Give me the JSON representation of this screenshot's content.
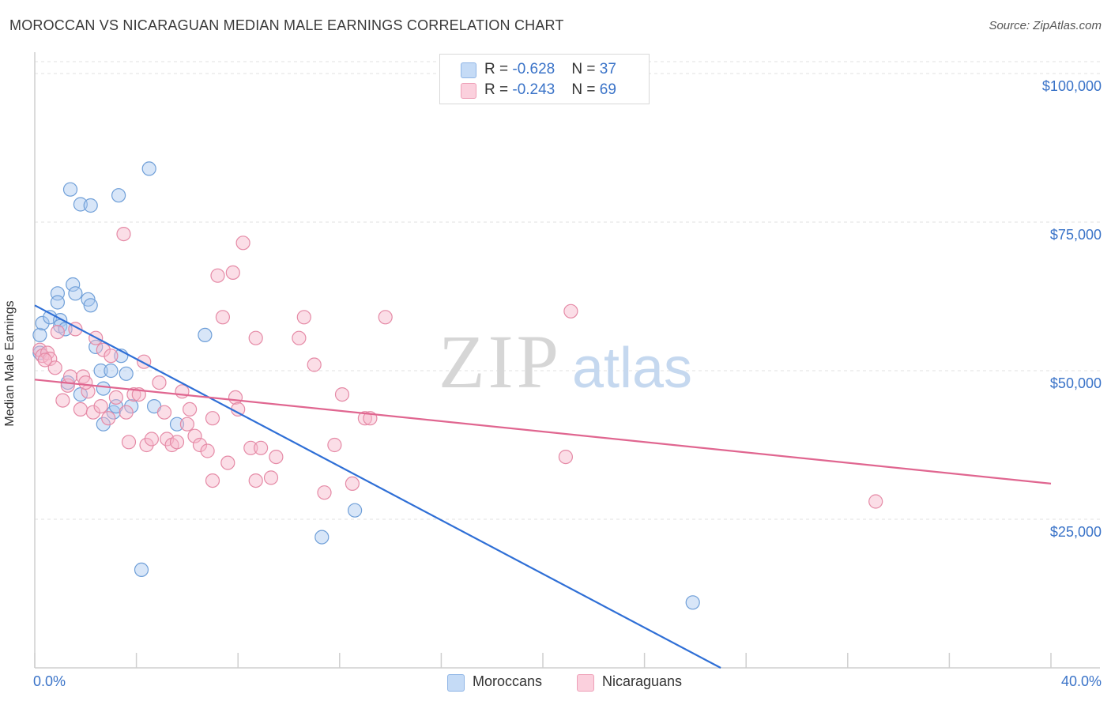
{
  "title": "MOROCCAN VS NICARAGUAN MEDIAN MALE EARNINGS CORRELATION CHART",
  "source": "Source: ZipAtlas.com",
  "watermark": {
    "zip": "ZIP",
    "atlas": "atlas"
  },
  "legend": {
    "rows": [
      {
        "r_label": "R = ",
        "r_value": "-0.628",
        "n_label": "N = ",
        "n_value": "37",
        "color": "#a9c8f0"
      },
      {
        "r_label": "R = ",
        "r_value": "-0.243",
        "n_label": "N = ",
        "n_value": "69",
        "color": "#f6b6c9"
      }
    ]
  },
  "bottom_legend": [
    {
      "label": "Moroccans",
      "color": "#a9c8f0"
    },
    {
      "label": "Nicaraguans",
      "color": "#f6b6c9"
    }
  ],
  "chart_data": {
    "type": "scatter",
    "title": "MOROCCAN VS NICARAGUAN MEDIAN MALE EARNINGS CORRELATION CHART",
    "xlabel": "",
    "ylabel": "Median Male Earnings",
    "xlim": [
      0,
      40
    ],
    "ylim": [
      0,
      100000
    ],
    "x_tick_labels": [
      "0.0%",
      "40.0%"
    ],
    "y_ticks": [
      25000,
      50000,
      75000,
      100000
    ],
    "y_tick_labels": [
      "$25,000",
      "$50,000",
      "$75,000",
      "$100,000"
    ],
    "grid": true,
    "legend_position": "top-center",
    "series": [
      {
        "name": "Moroccans",
        "color": "#a9c8f0",
        "stroke": "#6f9fd8",
        "line_color": "#2f6fd6",
        "trend": {
          "x": [
            0,
            27
          ],
          "y": [
            61000,
            0
          ]
        },
        "points": [
          [
            0.2,
            56000
          ],
          [
            0.3,
            58000
          ],
          [
            0.6,
            59000
          ],
          [
            0.9,
            63000
          ],
          [
            0.9,
            61500
          ],
          [
            1.0,
            58500
          ],
          [
            1.0,
            57500
          ],
          [
            1.2,
            57000
          ],
          [
            1.3,
            48000
          ],
          [
            1.5,
            64500
          ],
          [
            1.6,
            63000
          ],
          [
            1.8,
            46000
          ],
          [
            2.1,
            62000
          ],
          [
            2.2,
            61000
          ],
          [
            1.4,
            80500
          ],
          [
            1.8,
            78000
          ],
          [
            2.2,
            77800
          ],
          [
            2.4,
            54000
          ],
          [
            2.6,
            50000
          ],
          [
            2.7,
            41000
          ],
          [
            2.7,
            47000
          ],
          [
            3.0,
            50000
          ],
          [
            3.1,
            43000
          ],
          [
            3.2,
            44000
          ],
          [
            3.3,
            79500
          ],
          [
            3.4,
            52500
          ],
          [
            3.6,
            49500
          ],
          [
            3.8,
            44000
          ],
          [
            4.2,
            16500
          ],
          [
            4.5,
            84000
          ],
          [
            4.7,
            44000
          ],
          [
            5.6,
            41000
          ],
          [
            6.7,
            56000
          ],
          [
            11.3,
            22000
          ],
          [
            12.6,
            26500
          ],
          [
            25.9,
            11000
          ],
          [
            0.2,
            53000
          ]
        ]
      },
      {
        "name": "Nicaraguans",
        "color": "#f6b6c9",
        "stroke": "#e58aa6",
        "line_color": "#e06690",
        "trend": {
          "x": [
            0,
            40
          ],
          "y": [
            48500,
            31000
          ]
        },
        "points": [
          [
            0.2,
            53500
          ],
          [
            0.3,
            52500
          ],
          [
            0.5,
            53000
          ],
          [
            0.6,
            52000
          ],
          [
            0.8,
            50500
          ],
          [
            0.9,
            56500
          ],
          [
            1.1,
            45000
          ],
          [
            1.3,
            47500
          ],
          [
            1.4,
            49000
          ],
          [
            1.6,
            57000
          ],
          [
            1.8,
            43500
          ],
          [
            1.9,
            49000
          ],
          [
            2.1,
            46500
          ],
          [
            2.3,
            43000
          ],
          [
            2.4,
            55500
          ],
          [
            2.6,
            44000
          ],
          [
            2.7,
            53500
          ],
          [
            2.9,
            42000
          ],
          [
            3.0,
            52500
          ],
          [
            3.2,
            45500
          ],
          [
            3.5,
            73000
          ],
          [
            3.6,
            43000
          ],
          [
            3.7,
            38000
          ],
          [
            3.9,
            46000
          ],
          [
            4.1,
            46000
          ],
          [
            4.3,
            51500
          ],
          [
            4.4,
            37500
          ],
          [
            4.6,
            38500
          ],
          [
            4.9,
            48000
          ],
          [
            5.1,
            43000
          ],
          [
            5.2,
            38500
          ],
          [
            5.4,
            37500
          ],
          [
            5.6,
            38000
          ],
          [
            5.8,
            46500
          ],
          [
            6.0,
            41000
          ],
          [
            6.1,
            43500
          ],
          [
            6.3,
            39000
          ],
          [
            6.5,
            37500
          ],
          [
            6.8,
            36500
          ],
          [
            7.0,
            31500
          ],
          [
            7.0,
            42000
          ],
          [
            7.2,
            66000
          ],
          [
            7.4,
            59000
          ],
          [
            7.6,
            34500
          ],
          [
            7.8,
            66500
          ],
          [
            7.9,
            45500
          ],
          [
            8.0,
            43500
          ],
          [
            8.2,
            71500
          ],
          [
            8.5,
            37000
          ],
          [
            8.7,
            55500
          ],
          [
            8.7,
            31500
          ],
          [
            8.9,
            37000
          ],
          [
            9.3,
            32000
          ],
          [
            9.5,
            35500
          ],
          [
            10.4,
            55500
          ],
          [
            10.6,
            59000
          ],
          [
            11.0,
            51000
          ],
          [
            11.4,
            29500
          ],
          [
            11.8,
            37500
          ],
          [
            12.1,
            46000
          ],
          [
            12.5,
            31000
          ],
          [
            13.0,
            42000
          ],
          [
            13.2,
            42000
          ],
          [
            13.8,
            59000
          ],
          [
            20.9,
            35500
          ],
          [
            21.1,
            60000
          ],
          [
            33.1,
            28000
          ],
          [
            0.4,
            51800
          ],
          [
            2.0,
            48000
          ]
        ]
      }
    ]
  }
}
